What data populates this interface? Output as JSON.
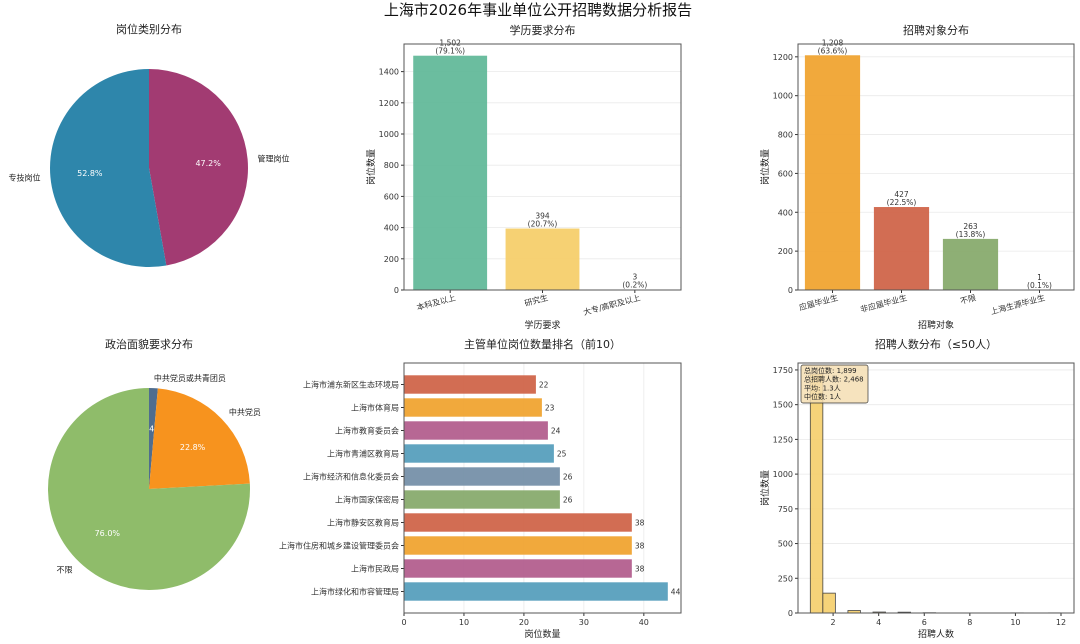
{
  "figure_title": "上海市2026年事业单位公开招聘数据分析报告",
  "chart_data": [
    {
      "id": "job-type",
      "type": "pie",
      "title": "岗位类别分布",
      "labels": [
        "管理岗位",
        "专技岗位"
      ],
      "values": [
        47.2,
        52.8
      ],
      "pct_labels": [
        "47.2%",
        "52.8%"
      ],
      "colors": [
        "#A23B72",
        "#2E86AB"
      ],
      "start": "top",
      "direction": "clockwise"
    },
    {
      "id": "education",
      "type": "bar",
      "title": "学历要求分布",
      "xlabel": "学历要求",
      "ylabel": "岗位数量",
      "categories": [
        "本科及以上",
        "研究生",
        "大专/高职及以上"
      ],
      "values": [
        1502,
        394,
        3
      ],
      "data_labels": [
        "1,502\n(79.1%)",
        "394\n(20.7%)",
        "3\n(0.2%)"
      ],
      "colors": [
        "#63B99A",
        "#F6CF6B",
        "#A8C8E8"
      ],
      "ylim": [
        0,
        1577
      ],
      "yticks": [
        0,
        200,
        400,
        600,
        800,
        1000,
        1200,
        1400
      ],
      "grid": "y"
    },
    {
      "id": "target",
      "type": "bar",
      "title": "招聘对象分布",
      "xlabel": "招聘对象",
      "ylabel": "岗位数量",
      "categories": [
        "应届毕业生",
        "非应届毕业生",
        "不限",
        "上海生源毕业生"
      ],
      "values": [
        1208,
        427,
        263,
        1
      ],
      "data_labels": [
        "1,208\n(63.6%)",
        "427\n(22.5%)",
        "263\n(13.8%)",
        "1\n(0.1%)"
      ],
      "colors": [
        "#F0A431",
        "#D0654A",
        "#88AB6E",
        "#7690A9"
      ],
      "ylim": [
        0,
        1266
      ],
      "yticks": [
        0,
        200,
        400,
        600,
        800,
        1000,
        1200
      ],
      "grid": "y"
    },
    {
      "id": "politics",
      "type": "pie",
      "title": "政治面貌要求分布",
      "labels": [
        "中共党员或共青团员",
        "中共党员",
        "不限"
      ],
      "values": [
        1.4,
        22.8,
        76.0
      ],
      "pct_labels": [
        "1.4%",
        "22.8%",
        "76.0%"
      ],
      "colors": [
        "#4F6D8F",
        "#F7931E",
        "#8FBC6A"
      ],
      "start": "top",
      "direction": "clockwise"
    },
    {
      "id": "departments",
      "type": "barh",
      "title": "主管单位岗位数量排名（前10）",
      "xlabel": "岗位数量",
      "categories": [
        "上海市浦东新区生态环境局",
        "上海市体育局",
        "上海市教育委员会",
        "上海市青浦区教育局",
        "上海市经济和信息化委员会",
        "上海市国家保密局",
        "上海市静安区教育局",
        "上海市住房和城乡建设管理委员会",
        "上海市民政局",
        "上海市绿化和市容管理局"
      ],
      "values": [
        22,
        23,
        24,
        25,
        26,
        26,
        38,
        38,
        38,
        44
      ],
      "data_labels": [
        "22",
        "23",
        "24",
        "25",
        "26",
        "26",
        "38",
        "38",
        "38",
        "44"
      ],
      "colors": [
        "#D0654A",
        "#F0A431",
        "#B35F8E",
        "#579FBD",
        "#7690A9",
        "#88AB6E",
        "#D0654A",
        "#F0A431",
        "#B35F8E",
        "#579FBD"
      ],
      "xlim": [
        0,
        46.2
      ],
      "xticks": [
        0,
        10,
        20,
        30,
        40
      ],
      "grid": "x"
    },
    {
      "id": "headcount",
      "type": "bar",
      "subtype": "histogram",
      "title": "招聘人数分布（≤50人）",
      "xlabel": "招聘人数",
      "ylabel": "岗位数量",
      "bins_start": 1,
      "bin_width": 0.55,
      "counts": [
        1720,
        143,
        0,
        18,
        0,
        7,
        0,
        6,
        0,
        2,
        0,
        0,
        0,
        0,
        0,
        0,
        1,
        0,
        0,
        1
      ],
      "color": "#F6CF6B",
      "edge_color": "#333333",
      "xlim": [
        0.46,
        12.57
      ],
      "ylim": [
        0,
        1800
      ],
      "xticks": [
        2,
        4,
        6,
        8,
        10,
        12
      ],
      "yticks": [
        0,
        250,
        500,
        750,
        1000,
        1250,
        1500,
        1750
      ],
      "grid": "y",
      "stats_box": [
        "总岗位数: 1,899",
        "总招聘人数: 2,468",
        "平均: 1.3人",
        "中位数: 1人"
      ],
      "stats_box_position": "top-left"
    }
  ]
}
